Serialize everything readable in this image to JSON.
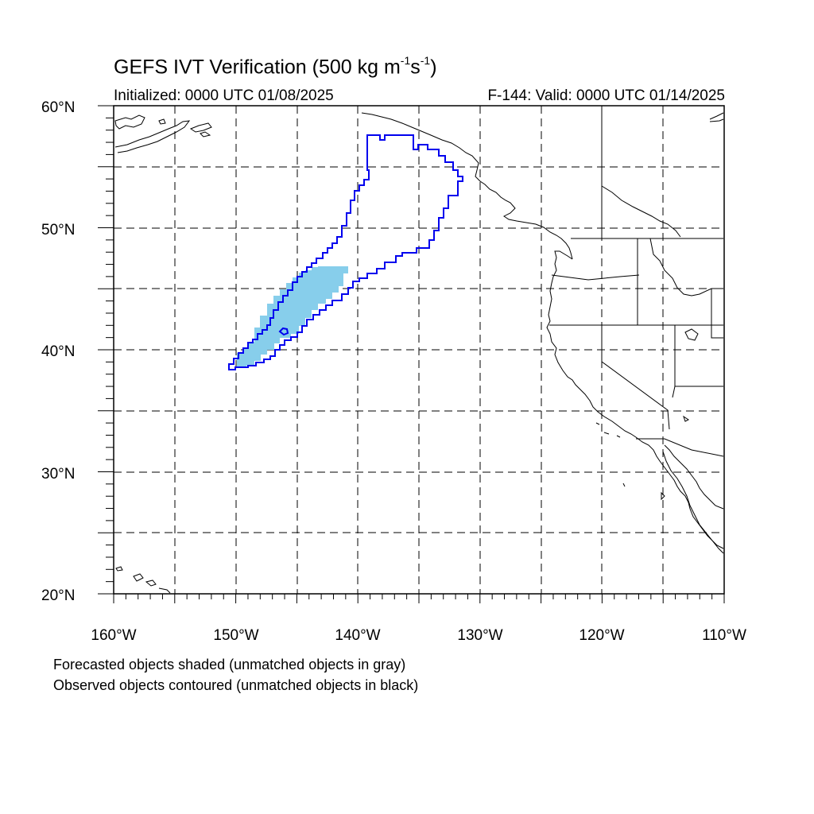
{
  "title": {
    "text": "GEFS IVT Verification (500 kg m",
    "exp1": "-1",
    "mid": "s",
    "exp2": "-1",
    "end": ")"
  },
  "subtitle": {
    "initialized": "Initialized: 0000 UTC 01/08/2025",
    "valid": "F-144: Valid: 0000 UTC 01/14/2025"
  },
  "map": {
    "lat_labels": [
      "60°N",
      "50°N",
      "40°N",
      "30°N",
      "20°N"
    ],
    "lon_labels": [
      "160°W",
      "150°W",
      "140°W",
      "130°W",
      "120°W",
      "110°W"
    ],
    "lat_range": [
      20,
      60
    ],
    "lon_range": [
      -160,
      -110
    ],
    "grid": "dashed every 5 degrees",
    "colors": {
      "forecast_shade": "#87ceeb",
      "observed_contour": "#0000ff",
      "coastline": "#000000",
      "grid": "#000000"
    }
  },
  "notes": {
    "line1": "Forecasted objects shaded (unmatched objects in gray)",
    "line2": "Observed objects contoured (unmatched objects in black)"
  }
}
